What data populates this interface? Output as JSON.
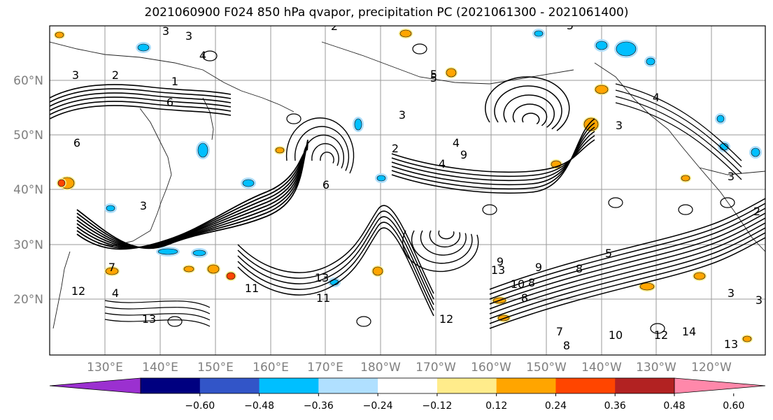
{
  "title": "2021060900 F024 850 hPa qvapor, precipitation PC (2021061300 - 2021061400)",
  "lat_ticks": [
    "60°N",
    "50°N",
    "40°N",
    "30°N",
    "20°N"
  ],
  "lon_ticks": [
    "130°E",
    "140°E",
    "150°E",
    "160°E",
    "170°E",
    "180°W",
    "170°W",
    "160°W",
    "150°W",
    "140°W",
    "130°W",
    "120°W"
  ],
  "colorbar": {
    "colors": [
      "#9b30d0",
      "#000080",
      "#3255c8",
      "#00bfff",
      "#b0e0ff",
      "#ffffff",
      "#ffec8b",
      "#ffa500",
      "#ff4500",
      "#b22222",
      "#ff88aa"
    ],
    "tick_labels": [
      "−0.60",
      "−0.48",
      "−0.36",
      "−0.24",
      "−0.12",
      "0.12",
      "0.24",
      "0.36",
      "0.48",
      "0.60"
    ]
  },
  "contour_labels": [
    "3",
    "3",
    "2",
    "4",
    "3",
    "2",
    "1",
    "6",
    "5",
    "4",
    "5",
    "3",
    "2",
    "4",
    "6",
    "9",
    "6",
    "3",
    "7",
    "4",
    "12",
    "13",
    "13",
    "11",
    "12",
    "13",
    "10",
    "9",
    "8",
    "7",
    "8",
    "10",
    "12",
    "14",
    "13",
    "3",
    "2",
    "3",
    "5",
    "4",
    "3",
    "3",
    "5",
    "8",
    "8",
    "9",
    "11"
  ]
}
